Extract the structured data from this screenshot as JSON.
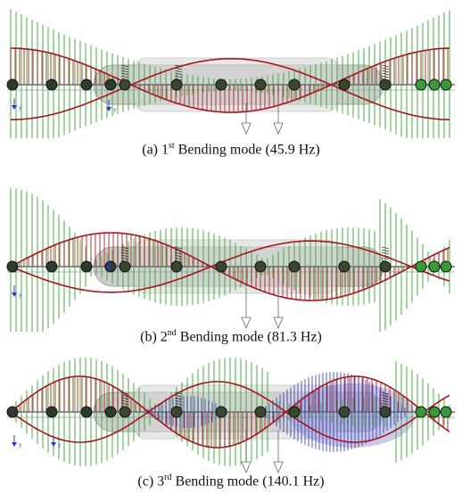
{
  "modes": [
    {
      "prefix": "(a) 1",
      "ordinal_suffix": "st",
      "rest": "Bending mode (45.9 Hz)"
    },
    {
      "prefix": "(b) 2",
      "ordinal_suffix": "nd",
      "rest": "Bending mode (81.3 Hz)"
    },
    {
      "prefix": "(c) 3",
      "ordinal_suffix": "rd",
      "rest": "Bending mode (140.1 Hz)"
    }
  ],
  "axis_label": "y",
  "colors": {
    "green": "#3fae3a",
    "red": "#a8151e",
    "blue": "#2b2fb2",
    "body": "#c9c9c9"
  }
}
